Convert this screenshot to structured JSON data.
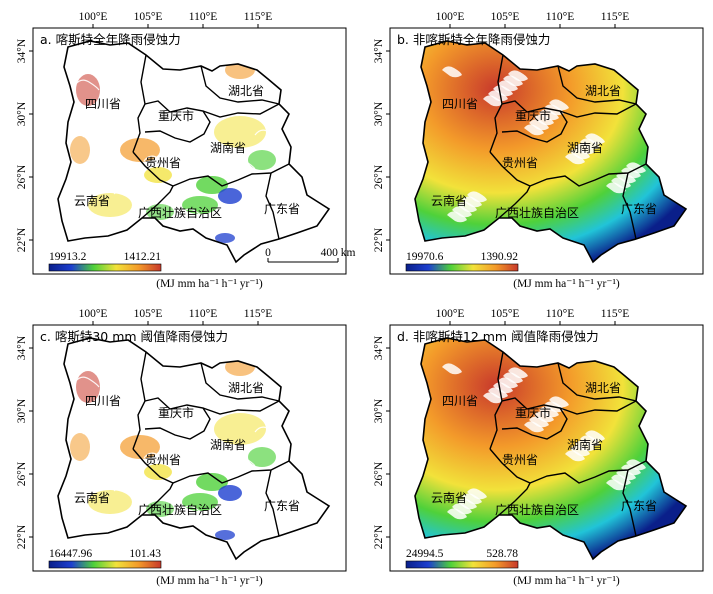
{
  "x_ticks": [
    "100°E",
    "105°E",
    "110°E",
    "115°E"
  ],
  "y_ticks": [
    "34°N",
    "30°N",
    "26°N",
    "22°N"
  ],
  "unit_label": "(MJ mm ha⁻¹ h⁻¹ yr⁻¹)",
  "scalebar": {
    "start": "0",
    "end": "400 km"
  },
  "provinces": [
    "四川省",
    "重庆市",
    "湖北省",
    "贵州省",
    "湖南省",
    "云南省",
    "广西壮族自治区",
    "广东省"
  ],
  "panels": [
    {
      "key": "a",
      "title": "a. 喀斯特全年降雨侵蚀力",
      "legend_high": "19913.2",
      "legend_low": "1412.21",
      "style": "karst"
    },
    {
      "key": "b",
      "title": "b. 非喀斯特全年降雨侵蚀力",
      "legend_high": "19970.6",
      "legend_low": "1390.92",
      "style": "nonkarst"
    },
    {
      "key": "c",
      "title": "c. 喀斯特30 mm 阈值降雨侵蚀力",
      "legend_high": "16447.96",
      "legend_low": "101.43",
      "style": "karst"
    },
    {
      "key": "d",
      "title": "d. 非喀斯特12 mm 阈值降雨侵蚀力",
      "legend_high": "24994.5",
      "legend_low": "528.78",
      "style": "nonkarst"
    }
  ],
  "colors": {
    "red": "#c8392b",
    "orange": "#f39a2a",
    "yellow": "#f2e23a",
    "green": "#4fd13a",
    "cyan": "#21c4d8",
    "blue": "#1d3fcf",
    "navy": "#0a1f8a",
    "border": "#000000"
  }
}
